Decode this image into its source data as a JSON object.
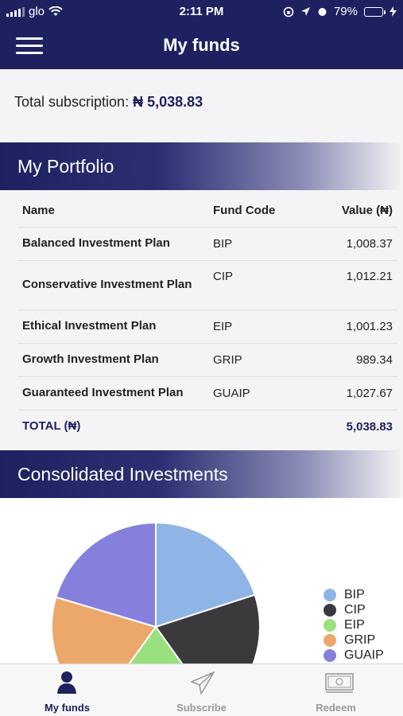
{
  "status_bar": {
    "carrier": "glo",
    "time": "2:11 PM",
    "battery": "79%"
  },
  "header": {
    "title": "My funds"
  },
  "subscription": {
    "label": "Total subscription:",
    "amount": "₦ 5,038.83"
  },
  "portfolio": {
    "title": "My Portfolio",
    "columns": [
      "Name",
      "Fund Code",
      "Value (₦)"
    ],
    "rows": [
      {
        "name": "Balanced Investment Plan",
        "code": "BIP",
        "value": "1,008.37"
      },
      {
        "name": "Conservative Investment Plan",
        "code": "CIP",
        "value": "1,012.21"
      },
      {
        "name": "Ethical Investment Plan",
        "code": "EIP",
        "value": "1,001.23"
      },
      {
        "name": "Growth Investment Plan",
        "code": "GRIP",
        "value": "989.34"
      },
      {
        "name": "Guaranteed Investment Plan",
        "code": "GUAIP",
        "value": "1,027.67"
      }
    ],
    "total_label": "TOTAL (₦)",
    "total_value": "5,038.83"
  },
  "consolidated": {
    "title": "Consolidated Investments"
  },
  "chart_data": {
    "type": "pie",
    "title": "",
    "categories": [
      "BIP",
      "CIP",
      "EIP",
      "GRIP",
      "GUAIP"
    ],
    "values": [
      1008.37,
      1012.21,
      1001.23,
      989.34,
      1027.67
    ],
    "colors": [
      "#8fb4e6",
      "#3a3a3d",
      "#9be07e",
      "#eba86a",
      "#8680dd"
    ],
    "legend_position": "right"
  },
  "tabbar": {
    "tabs": [
      {
        "label": "My funds",
        "icon": "person-icon",
        "active": true
      },
      {
        "label": "Subscribe",
        "icon": "paper-plane-icon",
        "active": false
      },
      {
        "label": "Redeem",
        "icon": "banknote-icon",
        "active": false
      }
    ]
  }
}
